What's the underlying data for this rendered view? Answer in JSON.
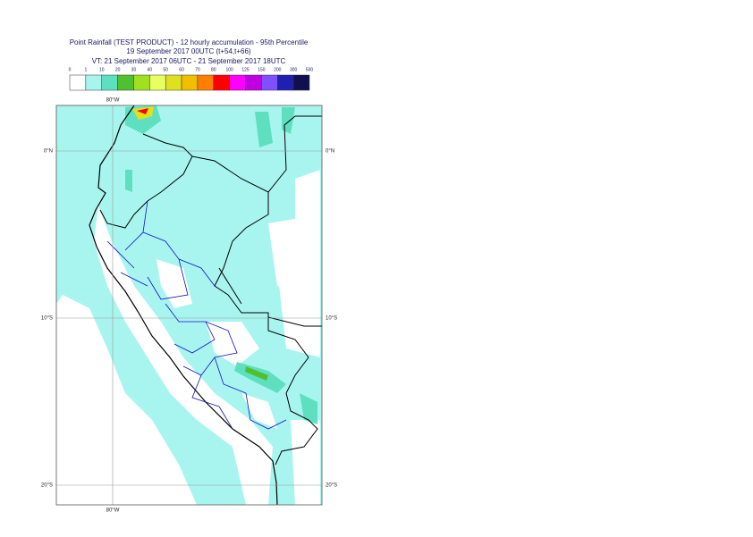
{
  "header": {
    "title_lines": [
      "Point Rainfall (TEST PRODUCT) - 12 hourly accumulation - 95th Percentile",
      "19 September 2017 00UTC (t+54,t+66)",
      "VT: 21 September 2017 06UTC - 21 September 2017 18UTC"
    ]
  },
  "legend": {
    "thresholds": [
      0,
      1,
      10,
      20,
      30,
      40,
      50,
      60,
      70,
      80,
      100,
      125,
      150,
      200,
      300,
      500
    ],
    "colors": [
      "#ffffff",
      "#a8f5f0",
      "#5ee0c0",
      "#50c030",
      "#a0e020",
      "#e8ff60",
      "#e0e020",
      "#f0c000",
      "#ff8000",
      "#ff0000",
      "#ff00ff",
      "#c000e0",
      "#8050ff",
      "#2020b0",
      "#101050"
    ]
  },
  "map": {
    "lon_label": "80°W",
    "lat_labels": [
      "0°N",
      "10°S",
      "20°S"
    ]
  }
}
